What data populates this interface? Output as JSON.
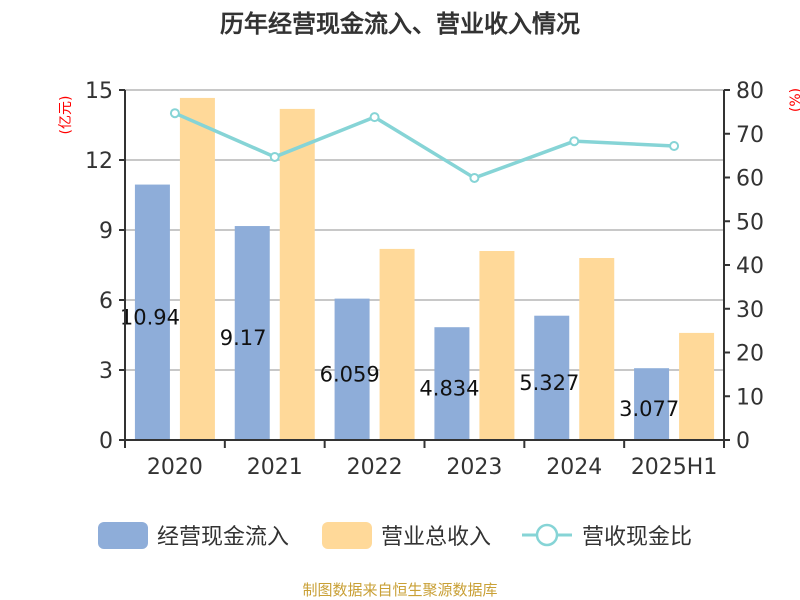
{
  "chart_data": {
    "type": "bar",
    "title": "历年经营现金流入、营业收入情况",
    "categories": [
      "2020",
      "2021",
      "2022",
      "2023",
      "2024",
      "2025H1"
    ],
    "left_axis": {
      "label": "(亿元)",
      "range": [
        0,
        15
      ],
      "ticks": [
        "0",
        "3",
        "6",
        "9",
        "12",
        "15"
      ]
    },
    "right_axis": {
      "label": "(%)",
      "range": [
        0,
        80
      ],
      "ticks": [
        "0",
        "10",
        "20",
        "30",
        "40",
        "50",
        "60",
        "70",
        "80"
      ]
    },
    "grid": true,
    "legend_position": "bottom",
    "series": [
      {
        "name": "经营现金流入",
        "type": "bar",
        "axis": "left",
        "color": "#8eadd9",
        "values": [
          10.947,
          9.17,
          6.059,
          4.834,
          5.327,
          3.077
        ],
        "labels": [
          "10.947",
          "9.17",
          "6.059",
          "4.834",
          "5.327",
          "3.077"
        ]
      },
      {
        "name": "营业总收入",
        "type": "bar",
        "axis": "left",
        "color": "#ffd999",
        "values": [
          14.66,
          14.19,
          8.19,
          8.1,
          7.8,
          4.59
        ]
      },
      {
        "name": "营收现金比",
        "type": "line",
        "axis": "right",
        "color": "#86d4d6",
        "values": [
          74.7,
          64.7,
          73.8,
          59.9,
          68.3,
          67.2
        ]
      }
    ],
    "source": "制图数据来自恒生聚源数据库"
  }
}
